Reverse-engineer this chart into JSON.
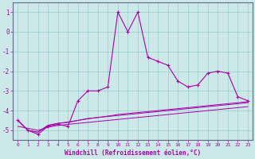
{
  "xlabel": "Windchill (Refroidissement éolien,°C)",
  "background_color": "#cce8e8",
  "grid_color": "#99cccc",
  "line_color": "#aa00aa",
  "x_values": [
    0,
    1,
    2,
    3,
    4,
    5,
    6,
    7,
    8,
    9,
    10,
    11,
    12,
    13,
    14,
    15,
    16,
    17,
    18,
    19,
    20,
    21,
    22,
    23
  ],
  "y_main": [
    -4.5,
    -5.0,
    -5.2,
    -4.8,
    -4.7,
    -4.8,
    -3.5,
    -3.0,
    -3.0,
    -2.8,
    1.0,
    0.0,
    1.0,
    -1.3,
    -1.5,
    -1.7,
    -2.5,
    -2.8,
    -2.7,
    -2.1,
    -2.0,
    -2.1,
    -3.3,
    -3.5
  ],
  "y_line1": [
    -4.8,
    -4.9,
    -5.0,
    -4.85,
    -4.75,
    -4.7,
    -4.65,
    -4.6,
    -4.55,
    -4.5,
    -4.45,
    -4.4,
    -4.35,
    -4.3,
    -4.25,
    -4.2,
    -4.15,
    -4.1,
    -4.05,
    -4.0,
    -3.95,
    -3.9,
    -3.85,
    -3.8
  ],
  "y_line2": [
    -4.5,
    -5.0,
    -5.1,
    -4.75,
    -4.65,
    -4.6,
    -4.5,
    -4.4,
    -4.35,
    -4.3,
    -4.25,
    -4.2,
    -4.15,
    -4.1,
    -4.05,
    -4.0,
    -3.95,
    -3.9,
    -3.85,
    -3.8,
    -3.75,
    -3.7,
    -3.65,
    -3.6
  ],
  "y_line3": [
    -4.5,
    -5.0,
    -5.1,
    -4.75,
    -4.65,
    -4.58,
    -4.5,
    -4.42,
    -4.35,
    -4.28,
    -4.2,
    -4.15,
    -4.1,
    -4.05,
    -4.0,
    -3.95,
    -3.9,
    -3.85,
    -3.8,
    -3.75,
    -3.7,
    -3.65,
    -3.6,
    -3.55
  ],
  "ylim": [
    -5.5,
    1.5
  ],
  "yticks": [
    1,
    0,
    -1,
    -2,
    -3,
    -4,
    -5
  ],
  "xlim": [
    -0.5,
    23.5
  ],
  "figwidth": 3.2,
  "figheight": 2.0,
  "dpi": 100
}
